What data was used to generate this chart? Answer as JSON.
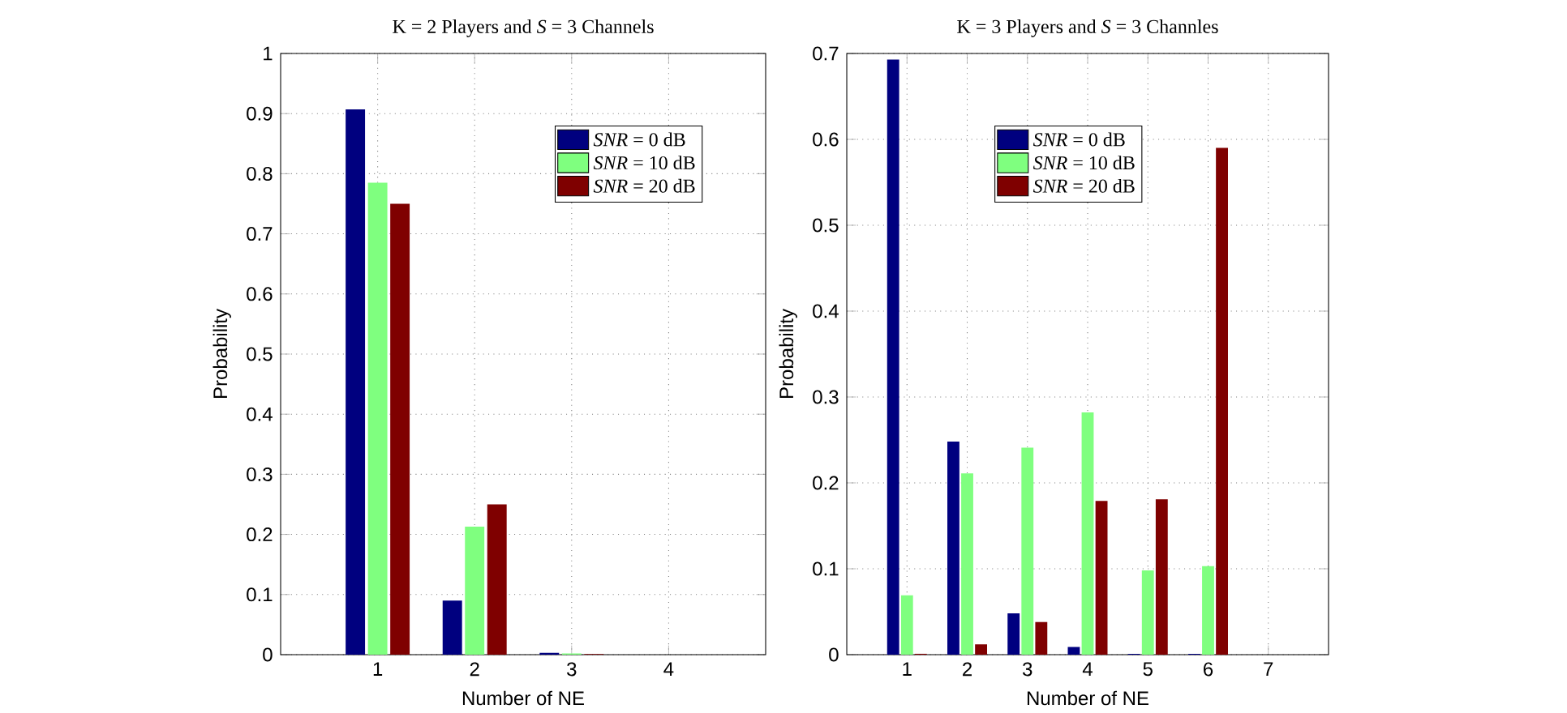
{
  "chart_data": [
    {
      "type": "bar",
      "title": "K = 2 Players and *S* = 3 Channels",
      "xlabel": "Number of NE",
      "ylabel": "Probability",
      "x": [
        1,
        2,
        3
      ],
      "xlim": [
        0,
        5
      ],
      "xticks": [
        1,
        2,
        3,
        4
      ],
      "ylim": [
        0,
        1
      ],
      "yticks": [
        0,
        0.1,
        0.2,
        0.3,
        0.4,
        0.5,
        0.6,
        0.7,
        0.8,
        0.9,
        1
      ],
      "grid": true,
      "legend": "top right",
      "series": [
        {
          "name": "*SNR* = 0 dB",
          "color": "#00007f",
          "values": [
            0.907,
            0.09,
            0.003
          ]
        },
        {
          "name": "*SNR* = 10 dB",
          "color": "#7fff7f",
          "values": [
            0.785,
            0.213,
            0.002
          ]
        },
        {
          "name": "*SNR* = 20 dB",
          "color": "#7f0000",
          "values": [
            0.75,
            0.25,
            0.001
          ]
        }
      ]
    },
    {
      "type": "bar",
      "title": "K = 3 Players and *S* = 3 Channles",
      "xlabel": "Number of NE",
      "ylabel": "Probability",
      "x": [
        1,
        2,
        3,
        4,
        5,
        6
      ],
      "xlim": [
        0,
        8
      ],
      "xticks": [
        1,
        2,
        3,
        4,
        5,
        6,
        7
      ],
      "ylim": [
        0,
        0.7
      ],
      "yticks": [
        0,
        0.1,
        0.2,
        0.3,
        0.4,
        0.5,
        0.6,
        0.7
      ],
      "grid": true,
      "legend": "top",
      "series": [
        {
          "name": "*SNR* = 0 dB",
          "color": "#00007f",
          "values": [
            0.693,
            0.248,
            0.048,
            0.009,
            0.001,
            0.001
          ]
        },
        {
          "name": "*SNR* = 10 dB",
          "color": "#7fff7f",
          "values": [
            0.069,
            0.211,
            0.241,
            0.282,
            0.098,
            0.103
          ]
        },
        {
          "name": "*SNR* = 20 dB",
          "color": "#7f0000",
          "values": [
            0.001,
            0.012,
            0.038,
            0.179,
            0.181,
            0.59
          ]
        }
      ]
    }
  ]
}
